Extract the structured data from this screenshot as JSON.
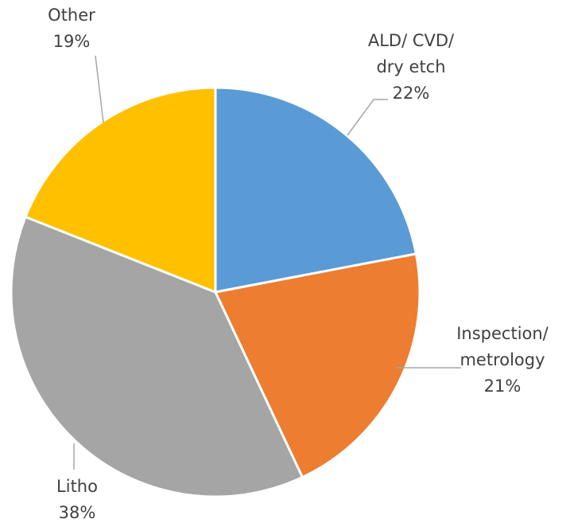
{
  "chart_data": {
    "type": "pie",
    "categories": [
      "ALD/ CVD/ dry etch",
      "Inspection/ metrology",
      "Litho",
      "Other"
    ],
    "values": [
      22,
      21,
      38,
      19
    ],
    "value_labels": [
      "22%",
      "21%",
      "38%",
      "19%"
    ],
    "colors": [
      "#5b9bd5",
      "#ed7d31",
      "#a5a5a5",
      "#ffc000"
    ]
  }
}
